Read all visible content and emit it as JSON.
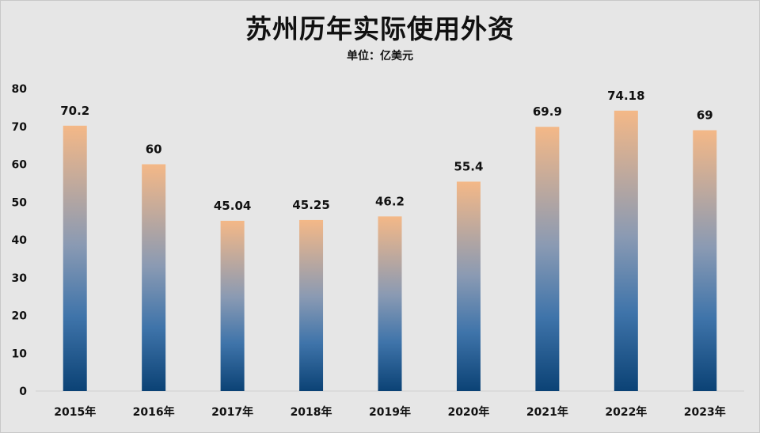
{
  "chart_data": {
    "type": "bar",
    "title": "苏州历年实际使用外资",
    "subtitle": "单位：亿美元",
    "categories": [
      "2015年",
      "2016年",
      "2017年",
      "2018年",
      "2019年",
      "2020年",
      "2021年",
      "2022年",
      "2023年"
    ],
    "values": [
      70.2,
      60,
      45.04,
      45.25,
      46.2,
      55.4,
      69.9,
      74.18,
      69
    ],
    "value_labels": [
      "70.2",
      "60",
      "45.04",
      "45.25",
      "46.2",
      "55.4",
      "69.9",
      "74.18",
      "69"
    ],
    "ylim": [
      0,
      80
    ],
    "yticks": [
      0,
      10,
      20,
      30,
      40,
      50,
      60,
      70,
      80
    ],
    "grid": false,
    "legend": "none",
    "colors": {
      "bar_top": "#f4b887",
      "bar_mid": "#8a9ab3",
      "bar_lower": "#3f74aa",
      "bar_bottom": "#0b4275",
      "axis": "#d0d0d0",
      "background": "#e6e6e6"
    }
  }
}
